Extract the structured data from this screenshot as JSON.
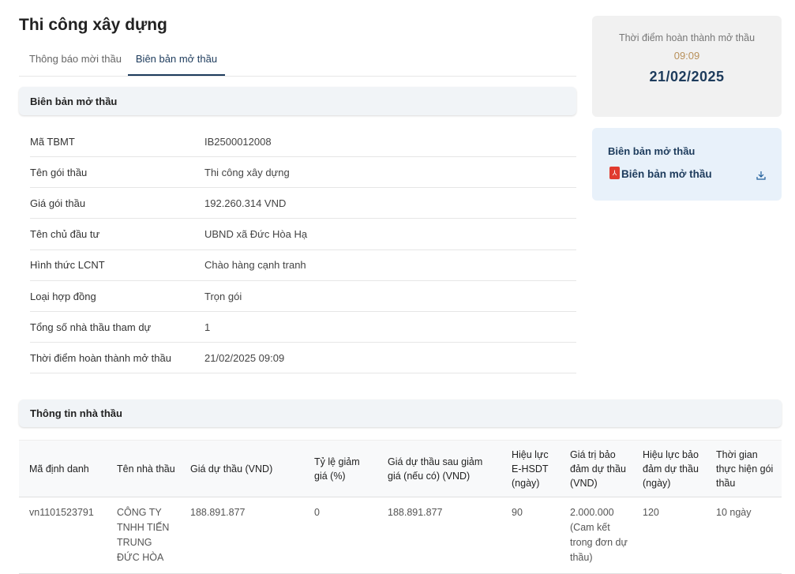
{
  "title": "Thi công xây dựng",
  "tabs": [
    {
      "label": "Thông báo mời thầu",
      "active": false
    },
    {
      "label": "Biên bản mở thầu",
      "active": true
    }
  ],
  "section1": {
    "title": "Biên bản mở thầu",
    "rows": [
      {
        "label": "Mã TBMT",
        "value": "IB2500012008"
      },
      {
        "label": "Tên gói thầu",
        "value": "Thi công xây dựng"
      },
      {
        "label": "Giá gói thầu",
        "value": "192.260.314 VND"
      },
      {
        "label": "Tên chủ đầu tư",
        "value": "UBND xã Đức Hòa Hạ"
      },
      {
        "label": "Hình thức LCNT",
        "value": "Chào hàng cạnh tranh"
      },
      {
        "label": "Loại hợp đồng",
        "value": "Trọn gói"
      },
      {
        "label": "Tổng số nhà thầu tham dự",
        "value": "1"
      },
      {
        "label": "Thời điểm hoàn thành mở thầu",
        "value": "21/02/2025 09:09"
      }
    ]
  },
  "completion_card": {
    "label": "Thời điểm hoàn thành mở thầu",
    "time": "09:09",
    "date": "21/02/2025"
  },
  "document_card": {
    "title": "Biên bản mở thầu",
    "file_label": "Biên bản mở thầu",
    "file_icon": "pdf-icon",
    "action_icon": "download-icon"
  },
  "section2": {
    "title": "Thông tin nhà thầu",
    "columns": [
      "Mã định danh",
      "Tên nhà thầu",
      "Giá dự thầu (VND)",
      "Tỷ lệ giảm giá (%)",
      "Giá dự thầu sau giảm giá (nếu có) (VND)",
      "Hiệu lực E-HSDT (ngày)",
      "Giá trị bảo đảm dự thầu (VND)",
      "Hiệu lực bảo đảm dự thầu (ngày)",
      "Thời gian thực hiện gói thầu"
    ],
    "rows": [
      [
        "vn1101523791",
        "CÔNG TY TNHH TIẾN TRUNG ĐỨC HÒA",
        "188.891.877",
        "0",
        "188.891.877",
        "90",
        "2.000.000 (Cam kết trong đơn dự thầu)",
        "120",
        "10 ngày"
      ]
    ]
  },
  "colors": {
    "accent": "#1d3b5c",
    "time": "#b8905a",
    "pdf": "#e03b2f"
  }
}
